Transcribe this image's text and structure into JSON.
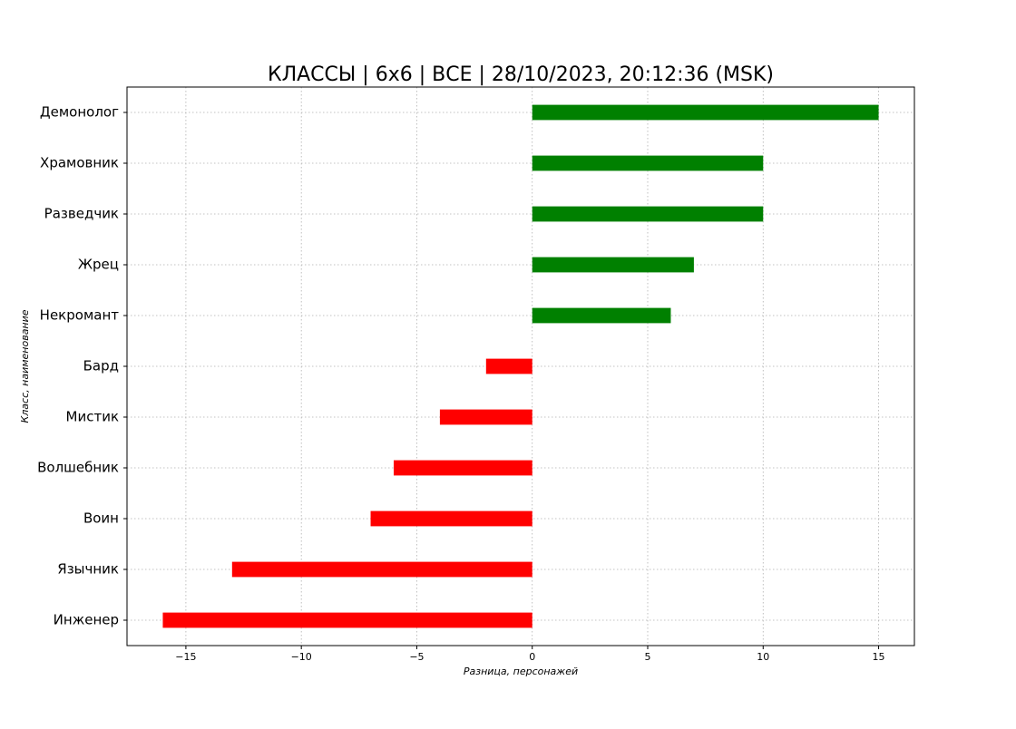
{
  "chart_data": {
    "type": "barh",
    "title": "КЛАССЫ | 6x6 | ВСЕ | 28/10/2023, 20:12:36 (MSK)",
    "xlabel": "Разница, персонажей",
    "ylabel": "Класс, наименование",
    "categories": [
      "Демонолог",
      "Храмовник",
      "Разведчик",
      "Жрец",
      "Некромант",
      "Бард",
      "Мистик",
      "Волшебник",
      "Воин",
      "Язычник",
      "Инженер"
    ],
    "values": [
      15,
      10,
      10,
      7,
      6,
      -2,
      -4,
      -6,
      -7,
      -13,
      -16
    ],
    "colors": [
      "#008000",
      "#008000",
      "#008000",
      "#008000",
      "#008000",
      "#ff0000",
      "#ff0000",
      "#ff0000",
      "#ff0000",
      "#ff0000",
      "#ff0000"
    ],
    "xlim": [
      -17.55,
      16.55
    ],
    "xticks": [
      {
        "value": -15,
        "label": "−15"
      },
      {
        "value": -10,
        "label": "−10"
      },
      {
        "value": -5,
        "label": "−5"
      },
      0,
      5,
      10,
      15
    ],
    "grid": true
  }
}
